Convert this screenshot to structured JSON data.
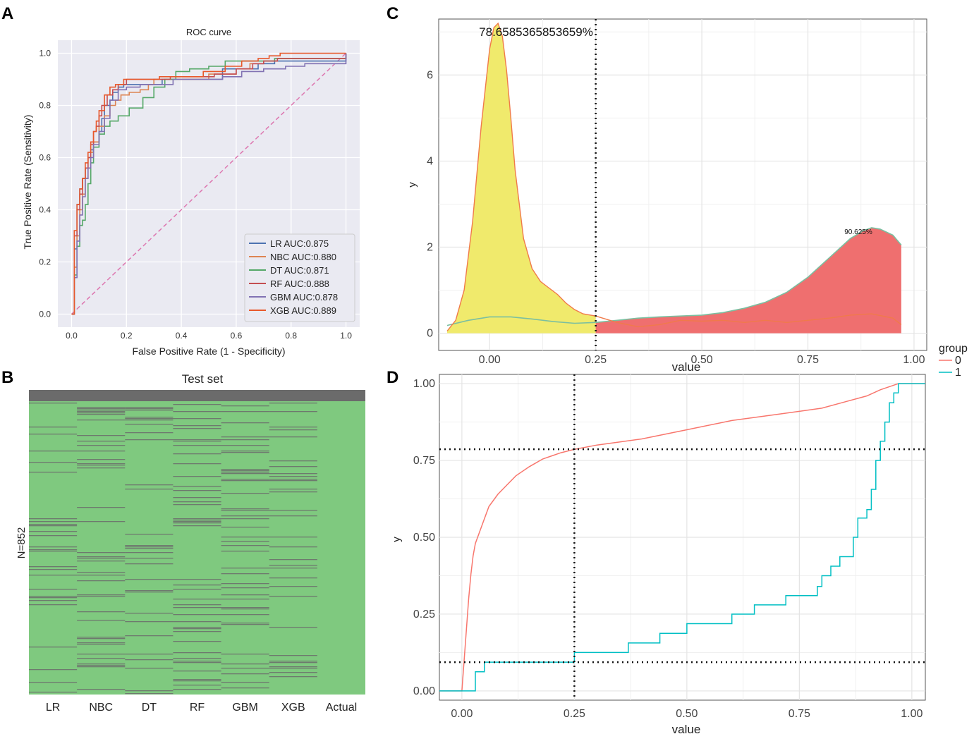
{
  "panel_labels": {
    "A": "A",
    "B": "B",
    "C": "C",
    "D": "D"
  },
  "colors": {
    "roc_bg": "#eaeaf2",
    "c_yellow": "#f0ea6c",
    "c_red": "#ef6f6f",
    "group0": "#f8766d",
    "group1": "#00bfc4",
    "heat_green": "#7fc97f",
    "heat_gray": "#6b6b6b"
  },
  "chart_data": [
    {
      "id": "A",
      "type": "line",
      "title": "ROC curve",
      "xlabel": "False Positive Rate (1 - Specificity)",
      "ylabel": "True Positive Rate (Sensitivity)",
      "xlim": [
        0,
        1
      ],
      "ylim": [
        0,
        1
      ],
      "xticks": [
        0.0,
        0.2,
        0.4,
        0.6,
        0.8,
        1.0
      ],
      "yticks": [
        0.0,
        0.2,
        0.4,
        0.6,
        0.8,
        1.0
      ],
      "xtick_labels": [
        "0.0",
        "0.2",
        "0.4",
        "0.6",
        "0.8",
        "1.0"
      ],
      "ytick_labels": [
        "0.0",
        "0.2",
        "0.4",
        "0.6",
        "0.8",
        "1.0"
      ],
      "grid": true,
      "legend_position": "bottom-right",
      "diagonal": {
        "x": [
          0,
          1
        ],
        "y": [
          0,
          1
        ],
        "color": "#dd77b0",
        "style": "dashed"
      },
      "series": [
        {
          "name": "LR AUC:0.875",
          "color": "#4c72b0",
          "x": [
            0,
            0.01,
            0.01,
            0.02,
            0.02,
            0.03,
            0.04,
            0.05,
            0.06,
            0.07,
            0.08,
            0.09,
            0.1,
            0.11,
            0.12,
            0.14,
            0.15,
            0.17,
            0.19,
            0.21,
            0.24,
            0.27,
            0.3,
            0.33,
            0.37,
            0.45,
            0.55,
            0.62,
            0.68,
            0.74,
            0.8,
            1.0
          ],
          "y": [
            0,
            0.12,
            0.25,
            0.34,
            0.42,
            0.48,
            0.52,
            0.56,
            0.6,
            0.63,
            0.66,
            0.66,
            0.7,
            0.75,
            0.8,
            0.82,
            0.85,
            0.87,
            0.88,
            0.88,
            0.88,
            0.88,
            0.88,
            0.9,
            0.9,
            0.9,
            0.94,
            0.94,
            0.96,
            0.97,
            0.97,
            1.0
          ]
        },
        {
          "name": "NBC AUC:0.880",
          "color": "#dd8452",
          "x": [
            0,
            0.01,
            0.02,
            0.03,
            0.04,
            0.05,
            0.06,
            0.07,
            0.08,
            0.1,
            0.12,
            0.14,
            0.16,
            0.18,
            0.21,
            0.25,
            0.28,
            0.3,
            0.34,
            0.4,
            0.5,
            0.6,
            0.65,
            0.7,
            0.75,
            1.0
          ],
          "y": [
            0,
            0.18,
            0.3,
            0.4,
            0.46,
            0.52,
            0.56,
            0.62,
            0.66,
            0.72,
            0.76,
            0.8,
            0.82,
            0.84,
            0.85,
            0.86,
            0.88,
            0.9,
            0.9,
            0.9,
            0.92,
            0.94,
            0.96,
            0.97,
            0.98,
            1.0
          ]
        },
        {
          "name": "DT AUC:0.871",
          "color": "#55a868",
          "x": [
            0,
            0.01,
            0.02,
            0.03,
            0.04,
            0.05,
            0.06,
            0.07,
            0.08,
            0.1,
            0.12,
            0.14,
            0.17,
            0.21,
            0.26,
            0.3,
            0.34,
            0.38,
            0.43,
            0.5,
            0.56,
            0.6,
            0.66,
            0.74,
            1.0
          ],
          "y": [
            0,
            0.15,
            0.26,
            0.34,
            0.36,
            0.42,
            0.5,
            0.58,
            0.64,
            0.69,
            0.72,
            0.74,
            0.76,
            0.79,
            0.83,
            0.87,
            0.9,
            0.93,
            0.94,
            0.95,
            0.97,
            0.97,
            0.97,
            0.98,
            1.0
          ]
        },
        {
          "name": "RF AUC:0.888",
          "color": "#c44e52",
          "x": [
            0,
            0.01,
            0.01,
            0.02,
            0.03,
            0.04,
            0.05,
            0.06,
            0.07,
            0.08,
            0.09,
            0.1,
            0.11,
            0.13,
            0.15,
            0.17,
            0.2,
            0.25,
            0.3,
            0.36,
            0.44,
            0.52,
            0.6,
            0.66,
            0.7,
            0.75,
            1.0
          ],
          "y": [
            0,
            0.15,
            0.3,
            0.4,
            0.46,
            0.52,
            0.56,
            0.6,
            0.65,
            0.7,
            0.72,
            0.76,
            0.8,
            0.84,
            0.86,
            0.88,
            0.9,
            0.9,
            0.9,
            0.91,
            0.91,
            0.92,
            0.94,
            0.96,
            0.97,
            0.98,
            1.0
          ]
        },
        {
          "name": "GBM AUC:0.878",
          "color": "#8172b3",
          "x": [
            0,
            0.01,
            0.02,
            0.03,
            0.04,
            0.05,
            0.06,
            0.07,
            0.08,
            0.1,
            0.12,
            0.14,
            0.17,
            0.2,
            0.25,
            0.3,
            0.37,
            0.45,
            0.55,
            0.62,
            0.7,
            0.78,
            0.85,
            1.0
          ],
          "y": [
            0,
            0.14,
            0.28,
            0.38,
            0.45,
            0.52,
            0.56,
            0.6,
            0.65,
            0.7,
            0.75,
            0.82,
            0.86,
            0.87,
            0.88,
            0.88,
            0.9,
            0.9,
            0.91,
            0.93,
            0.94,
            0.95,
            0.96,
            1.0
          ]
        },
        {
          "name": "XGB AUC:0.889",
          "color": "#e8582b",
          "x": [
            0,
            0.01,
            0.01,
            0.02,
            0.03,
            0.04,
            0.05,
            0.06,
            0.07,
            0.08,
            0.09,
            0.1,
            0.12,
            0.14,
            0.16,
            0.19,
            0.22,
            0.27,
            0.32,
            0.4,
            0.48,
            0.56,
            0.62,
            0.68,
            0.72,
            0.76,
            1.0
          ],
          "y": [
            0,
            0.18,
            0.32,
            0.42,
            0.48,
            0.52,
            0.58,
            0.62,
            0.66,
            0.7,
            0.74,
            0.78,
            0.84,
            0.87,
            0.88,
            0.9,
            0.9,
            0.9,
            0.91,
            0.91,
            0.93,
            0.95,
            0.97,
            0.98,
            0.99,
            1.0,
            1.0
          ]
        }
      ]
    },
    {
      "id": "B",
      "type": "heatmap",
      "title": "Test set",
      "ylabel": "N=852",
      "columns": [
        "LR",
        "NBC",
        "DT",
        "RF",
        "GBM",
        "XGB",
        "Actual"
      ],
      "n_rows": 852,
      "legend": "none"
    },
    {
      "id": "C",
      "type": "area",
      "xlabel": "value",
      "ylabel": "y",
      "xlim": [
        -0.12,
        1.03
      ],
      "ylim": [
        -0.4,
        7.3
      ],
      "xticks": [
        0.0,
        0.25,
        0.5,
        0.75,
        1.0
      ],
      "yticks": [
        0,
        2,
        4,
        6
      ],
      "xtick_labels": [
        "0.00",
        "0.25",
        "0.50",
        "0.75",
        "1.00"
      ],
      "ytick_labels": [
        "0",
        "2",
        "4",
        "6"
      ],
      "grid": true,
      "threshold": 0.25,
      "annotations": [
        "78.6585365853659%",
        "90.625%"
      ],
      "series": [
        {
          "name": "group 0 density",
          "color": "#f8766d",
          "x": [
            -0.1,
            -0.08,
            -0.06,
            -0.04,
            -0.02,
            0.0,
            0.01,
            0.02,
            0.03,
            0.04,
            0.05,
            0.06,
            0.08,
            0.1,
            0.12,
            0.14,
            0.16,
            0.18,
            0.2,
            0.22,
            0.25,
            0.3,
            0.35,
            0.4,
            0.45,
            0.5,
            0.55,
            0.6,
            0.65,
            0.7,
            0.75,
            0.8,
            0.85,
            0.9,
            0.95,
            0.97
          ],
          "y": [
            0.05,
            0.3,
            1.0,
            2.6,
            4.8,
            6.6,
            7.1,
            7.2,
            6.9,
            6.1,
            5.0,
            3.8,
            2.2,
            1.5,
            1.2,
            1.05,
            0.9,
            0.7,
            0.55,
            0.45,
            0.4,
            0.25,
            0.15,
            0.2,
            0.3,
            0.28,
            0.3,
            0.25,
            0.3,
            0.25,
            0.3,
            0.35,
            0.42,
            0.45,
            0.35,
            0.2
          ]
        },
        {
          "name": "group 1 density",
          "color": "#00bfc4",
          "x": [
            -0.1,
            -0.05,
            0.0,
            0.05,
            0.1,
            0.15,
            0.2,
            0.25,
            0.3,
            0.35,
            0.4,
            0.45,
            0.5,
            0.55,
            0.6,
            0.65,
            0.7,
            0.75,
            0.8,
            0.85,
            0.88,
            0.9,
            0.92,
            0.95,
            0.97
          ],
          "y": [
            0.18,
            0.3,
            0.38,
            0.38,
            0.33,
            0.27,
            0.23,
            0.25,
            0.3,
            0.35,
            0.38,
            0.4,
            0.42,
            0.48,
            0.58,
            0.72,
            0.95,
            1.3,
            1.75,
            2.2,
            2.38,
            2.45,
            2.42,
            2.28,
            2.05
          ]
        }
      ]
    },
    {
      "id": "D",
      "type": "line",
      "xlabel": "value",
      "ylabel": "y",
      "xlim": [
        -0.05,
        1.03
      ],
      "ylim": [
        -0.03,
        1.03
      ],
      "xticks": [
        0.0,
        0.25,
        0.5,
        0.75,
        1.0
      ],
      "yticks": [
        0.0,
        0.25,
        0.5,
        0.75,
        1.0
      ],
      "xtick_labels": [
        "0.00",
        "0.25",
        "0.50",
        "0.75",
        "1.00"
      ],
      "ytick_labels": [
        "0.00",
        "0.25",
        "0.50",
        "0.75",
        "1.00"
      ],
      "grid": true,
      "threshold_x": 0.25,
      "hlines": [
        0.786585,
        0.09375
      ],
      "legend": {
        "title": "group",
        "entries": [
          "0",
          "1"
        ],
        "position": "right"
      },
      "series": [
        {
          "name": "0",
          "color": "#f8766d",
          "x": [
            -0.05,
            0.0,
            0.005,
            0.01,
            0.015,
            0.02,
            0.025,
            0.03,
            0.04,
            0.05,
            0.06,
            0.08,
            0.1,
            0.12,
            0.15,
            0.18,
            0.2,
            0.22,
            0.25,
            0.3,
            0.35,
            0.4,
            0.5,
            0.6,
            0.7,
            0.8,
            0.85,
            0.9,
            0.93,
            0.95,
            0.97,
            1.03
          ],
          "y": [
            0.0,
            0.0,
            0.1,
            0.2,
            0.3,
            0.38,
            0.44,
            0.48,
            0.52,
            0.56,
            0.6,
            0.64,
            0.67,
            0.7,
            0.73,
            0.755,
            0.765,
            0.775,
            0.786,
            0.8,
            0.81,
            0.82,
            0.85,
            0.88,
            0.9,
            0.92,
            0.94,
            0.96,
            0.98,
            0.99,
            1.0,
            1.0
          ]
        },
        {
          "name": "1",
          "color": "#00bfc4",
          "x": [
            -0.05,
            0.0,
            0.01,
            0.03,
            0.05,
            0.25,
            0.37,
            0.44,
            0.5,
            0.6,
            0.65,
            0.72,
            0.78,
            0.79,
            0.8,
            0.82,
            0.84,
            0.87,
            0.88,
            0.9,
            0.91,
            0.92,
            0.93,
            0.94,
            0.95,
            0.96,
            0.97,
            1.03
          ],
          "y": [
            0.0,
            0.0,
            0.0,
            0.0625,
            0.09375,
            0.125,
            0.156,
            0.1875,
            0.219,
            0.25,
            0.28,
            0.31,
            0.31,
            0.34,
            0.375,
            0.406,
            0.437,
            0.5,
            0.5625,
            0.59,
            0.656,
            0.75,
            0.8125,
            0.875,
            0.9375,
            0.97,
            1.0,
            1.0
          ]
        }
      ]
    }
  ]
}
